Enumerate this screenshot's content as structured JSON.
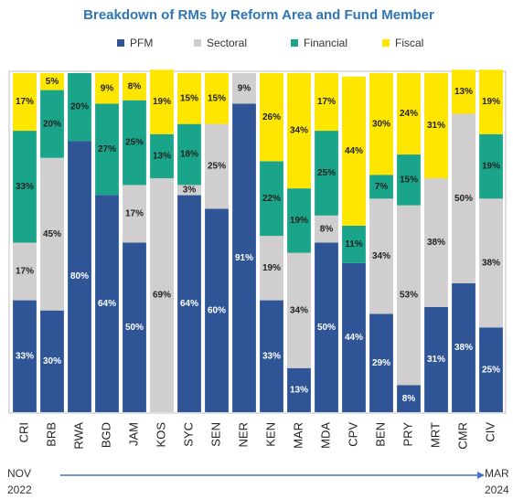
{
  "chart_data": {
    "type": "stacked_bar",
    "title": "Breakdown of RMs by Reform Area and Fund Member",
    "categories": [
      "CRI",
      "BRB",
      "RWA",
      "BGD",
      "JAM",
      "KOS",
      "SYC",
      "SEN",
      "NER",
      "KEN",
      "MAR",
      "MDA",
      "CPV",
      "BEN",
      "PRY",
      "MRT",
      "CMR",
      "CIV"
    ],
    "series": [
      {
        "name": "PFM",
        "color": "#2f5597",
        "values": [
          33,
          30,
          80,
          64,
          50,
          0,
          64,
          60,
          91,
          33,
          13,
          50,
          44,
          29,
          8,
          31,
          38,
          25
        ],
        "value_labels": [
          "33%",
          "30%",
          "80%",
          "64%",
          "50%",
          null,
          "64%",
          "60%",
          "91%",
          "33%",
          "13%",
          "50%",
          "44%",
          "29%",
          "8%",
          "31%",
          "38%",
          "25%"
        ]
      },
      {
        "name": "Sectoral",
        "color": "#d0cece",
        "values": [
          17,
          45,
          0,
          0,
          17,
          69,
          3,
          25,
          9,
          19,
          34,
          8,
          0,
          34,
          53,
          38,
          50,
          38
        ],
        "value_labels": [
          "17%",
          "45%",
          null,
          null,
          "17%",
          "69%",
          "3%",
          "25%",
          "9%",
          "19%",
          "34%",
          "8%",
          null,
          "34%",
          "53%",
          "38%",
          "50%",
          "38%"
        ]
      },
      {
        "name": "Financial",
        "color": "#1aa58a",
        "values": [
          33,
          20,
          20,
          27,
          25,
          13,
          18,
          0,
          0,
          22,
          19,
          25,
          11,
          7,
          15,
          0,
          0,
          19
        ],
        "value_labels": [
          "33%",
          "20%",
          "20%",
          "27%",
          "25%",
          "13%",
          "18%",
          null,
          null,
          "22%",
          "19%",
          "25%",
          "11%",
          "7%",
          "15%",
          null,
          null,
          "19%"
        ]
      },
      {
        "name": "Fiscal",
        "color": "#ffe600",
        "values": [
          17,
          5,
          0,
          9,
          8,
          19,
          15,
          15,
          0,
          26,
          34,
          17,
          44,
          30,
          24,
          31,
          13,
          19
        ],
        "value_labels": [
          "17%",
          "5%",
          null,
          "9%",
          "8%",
          "19%",
          "15%",
          "15%",
          null,
          "26%",
          "34%",
          "17%",
          "44%",
          "30%",
          "24%",
          "31%",
          "13%",
          "19%"
        ]
      }
    ],
    "ylim": [
      0,
      100
    ],
    "legend": "top",
    "timeline_start": [
      "NOV",
      "2022"
    ],
    "timeline_end": [
      "MAR",
      "2024"
    ]
  }
}
